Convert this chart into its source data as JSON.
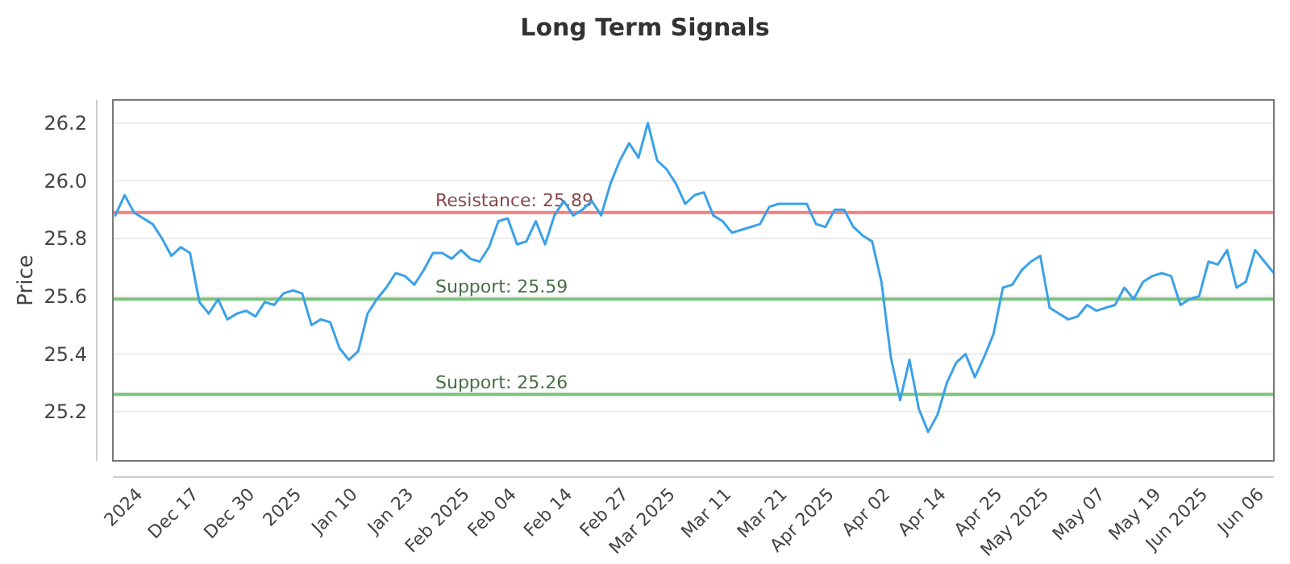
{
  "chart_data": {
    "type": "line",
    "title": "Long Term Signals",
    "ylabel": "Price",
    "categories": [
      "2024",
      null,
      null,
      null,
      null,
      null,
      "Dec 17",
      null,
      null,
      null,
      null,
      null,
      "Dec 30",
      null,
      null,
      null,
      null,
      "2025",
      null,
      null,
      null,
      null,
      null,
      "Jan 10",
      null,
      null,
      null,
      null,
      null,
      "Jan 23",
      null,
      null,
      null,
      null,
      null,
      "Feb 2025",
      null,
      null,
      null,
      null,
      "Feb 04",
      null,
      null,
      null,
      null,
      null,
      "Feb 14",
      null,
      null,
      null,
      null,
      null,
      "Feb 27",
      null,
      null,
      null,
      null,
      "Mar 2025",
      null,
      null,
      null,
      null,
      null,
      "Mar 11",
      null,
      null,
      null,
      null,
      null,
      "Mar 21",
      null,
      null,
      null,
      null,
      "Apr 2025",
      null,
      null,
      null,
      null,
      null,
      "Apr 02",
      null,
      null,
      null,
      null,
      null,
      "Apr 14",
      null,
      null,
      null,
      null,
      null,
      "Apr 25",
      null,
      null,
      null,
      null,
      "May 2025",
      null,
      null,
      null,
      null,
      null,
      "May 07",
      null,
      null,
      null,
      null,
      null,
      "May 19",
      null,
      null,
      null,
      null,
      "Jun 2025",
      null,
      null,
      null,
      null,
      null,
      "Jun 06",
      null,
      null,
      null,
      null
    ],
    "ylim": [
      25.03,
      26.28
    ],
    "yticks": [
      25.2,
      25.4,
      25.6,
      25.8,
      {
        "value": 26,
        "label": "26.0"
      },
      26.2
    ],
    "grid": "y",
    "marker": "none",
    "line_style": "solid",
    "series": [
      {
        "color": "#3ba1e8",
        "values": [
          25.88,
          25.95,
          25.89,
          25.87,
          25.85,
          25.8,
          25.74,
          25.77,
          25.75,
          25.58,
          25.54,
          25.59,
          25.52,
          25.54,
          25.55,
          25.53,
          25.58,
          25.57,
          25.61,
          25.62,
          25.61,
          25.5,
          25.52,
          25.51,
          25.42,
          25.38,
          25.41,
          25.54,
          25.59,
          25.63,
          25.68,
          25.67,
          25.64,
          25.69,
          25.75,
          25.75,
          25.73,
          25.76,
          25.73,
          25.72,
          25.77,
          25.86,
          25.87,
          25.78,
          25.79,
          25.86,
          25.78,
          25.88,
          25.93,
          25.88,
          25.9,
          25.93,
          25.88,
          25.99,
          26.07,
          26.13,
          26.08,
          26.2,
          26.07,
          26.04,
          25.99,
          25.92,
          25.95,
          25.96,
          25.88,
          25.86,
          25.82,
          25.83,
          25.84,
          25.85,
          25.91,
          25.92,
          25.92,
          25.92,
          25.92,
          25.85,
          25.84,
          25.9,
          25.9,
          25.84,
          25.81,
          25.79,
          25.65,
          25.39,
          25.24,
          25.38,
          25.21,
          25.13,
          25.19,
          25.3,
          25.37,
          25.4,
          25.32,
          25.39,
          25.47,
          25.63,
          25.64,
          25.69,
          25.72,
          25.74,
          25.56,
          25.54,
          25.52,
          25.53,
          25.57,
          25.55,
          25.56,
          25.57,
          25.63,
          25.59,
          25.65,
          25.67,
          25.68,
          25.67,
          25.57,
          25.59,
          25.6,
          25.72,
          25.71,
          25.76,
          25.63,
          25.65,
          25.76,
          25.72,
          25.68
        ]
      }
    ],
    "ref_lines": [
      {
        "axis": "y",
        "value": 25.89,
        "label": "Resistance: 25.89",
        "color": "#f08080"
      },
      {
        "axis": "y",
        "value": 25.59,
        "label": "Support: 25.59",
        "color": "#7cc47c"
      },
      {
        "axis": "y",
        "value": 25.26,
        "label": "Support: 25.26",
        "color": "#7cc47c"
      }
    ]
  }
}
